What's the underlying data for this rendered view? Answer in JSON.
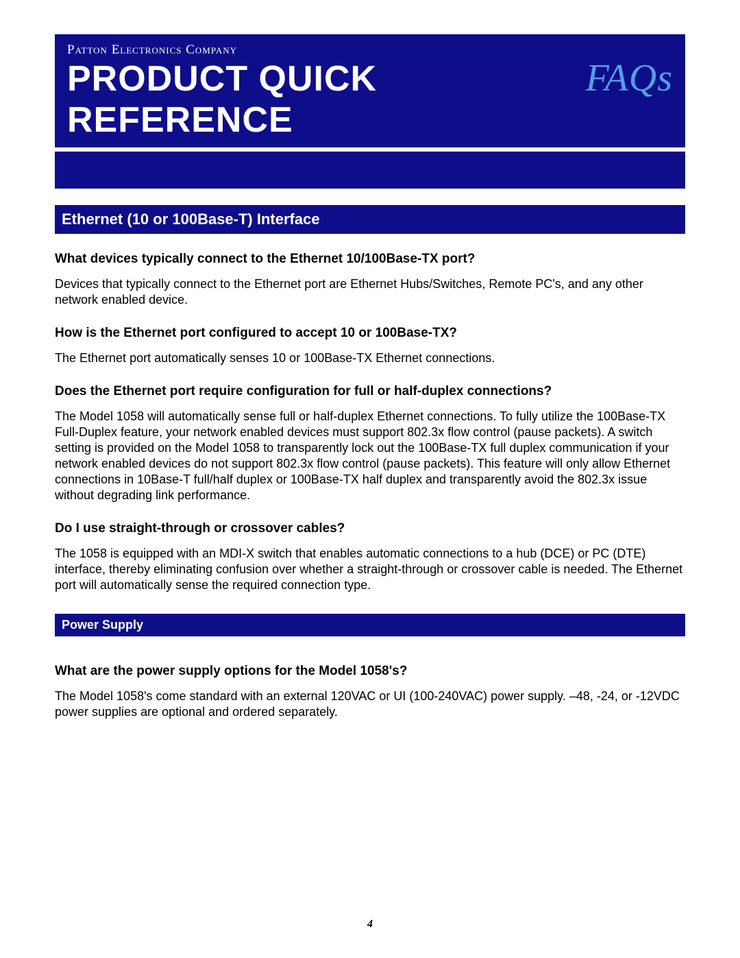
{
  "header": {
    "company": "Patton Electronics Company",
    "title": "PRODUCT QUICK REFERENCE",
    "badge": "FAQs"
  },
  "sections": [
    {
      "type": "main",
      "title": "Ethernet (10 or 100Base-T) Interface",
      "items": [
        {
          "q": "What devices typically connect to the Ethernet 10/100Base-TX port?",
          "a": "Devices that typically connect to the Ethernet port are Ethernet Hubs/Switches, Remote PC's, and any other network enabled device."
        },
        {
          "q": "How is the Ethernet port configured to accept 10 or 100Base-TX?",
          "a": "The Ethernet port automatically senses 10 or 100Base-TX Ethernet connections."
        },
        {
          "q": "Does the Ethernet port require configuration for full or half-duplex connections?",
          "a": "The Model 1058 will automatically sense full or half-duplex Ethernet connections.  To fully utilize the 100Base-TX Full-Duplex feature, your network enabled devices must support 802.3x flow control (pause packets).  A switch setting is provided on the Model 1058 to transparently lock out the 100Base-TX full duplex communication if your network enabled devices do not support 802.3x flow control (pause packets).  This feature will only allow Ethernet connections in 10Base-T full/half duplex or 100Base-TX half duplex and transparently avoid the 802.3x issue without degrading link performance."
        },
        {
          "q": "Do I use straight-through or crossover cables?",
          "a": "The 1058 is equipped with an MDI-X switch that enables automatic connections to a hub (DCE) or PC (DTE) interface, thereby eliminating confusion over whether a straight-through or crossover cable is needed.  The Ethernet port will automatically sense the required connection type."
        }
      ]
    },
    {
      "type": "sub",
      "title": "Power Supply",
      "items": [
        {
          "q": "What are the power supply options for the Model 1058's?",
          "a": "The Model 1058's come standard with an external 120VAC or UI (100-240VAC) power supply.  –48, -24, or -12VDC power supplies are optional and ordered separately."
        }
      ]
    }
  ],
  "page_number": "4",
  "colors": {
    "banner_bg": "#0e0e8a",
    "faqs_color": "#539fe0",
    "text": "#000000",
    "white": "#ffffff"
  }
}
